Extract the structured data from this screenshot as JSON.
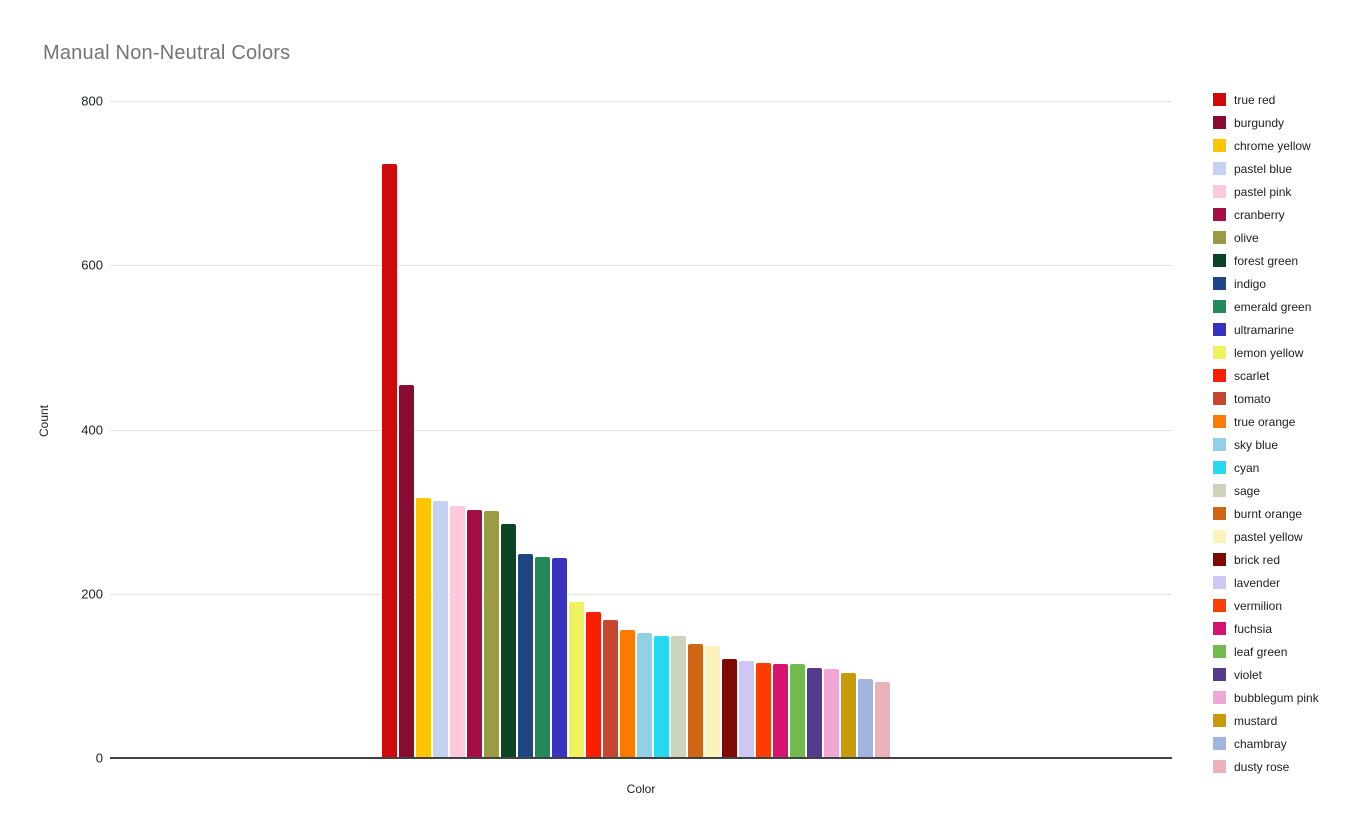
{
  "title": "Manual Non-Neutral Colors",
  "chart_data": {
    "type": "bar",
    "title": "Manual Non-Neutral Colors",
    "xlabel": "Color",
    "ylabel": "Count",
    "ylim": [
      0,
      800
    ],
    "yticks": [
      0,
      200,
      400,
      600,
      800
    ],
    "grid": true,
    "legend_position": "right",
    "categories": [
      "true red",
      "burgundy",
      "chrome yellow",
      "pastel blue",
      "pastel pink",
      "cranberry",
      "olive",
      "forest green",
      "indigo",
      "emerald green",
      "ultramarine",
      "lemon yellow",
      "scarlet",
      "tomato",
      "true orange",
      "sky blue",
      "cyan",
      "sage",
      "burnt orange",
      "pastel yellow",
      "brick red",
      "lavender",
      "vermilion",
      "fuchsia",
      "leaf green",
      "violet",
      "bubblegum pink",
      "mustard",
      "chambray",
      "dusty rose"
    ],
    "values": [
      723,
      454,
      317,
      313,
      307,
      302,
      301,
      285,
      249,
      245,
      243,
      190,
      178,
      168,
      156,
      152,
      149,
      148,
      139,
      137,
      120,
      118,
      116,
      115,
      114,
      110,
      108,
      104,
      96,
      93
    ],
    "colors": [
      "#ce0a0a",
      "#8b0a32",
      "#fdc500",
      "#c3d2f0",
      "#fec9dc",
      "#a60d45",
      "#9c9b45",
      "#0b4326",
      "#1e4685",
      "#22895b",
      "#3733c0",
      "#eef25d",
      "#fc1e00",
      "#c74630",
      "#fd7900",
      "#90d1e8",
      "#27d9f0",
      "#cbd3bb",
      "#d16516",
      "#fcf3ba",
      "#7f0a05",
      "#cdc7f5",
      "#fc3d00",
      "#d91272",
      "#70ba4e",
      "#563a8b",
      "#f2a6d3",
      "#c89a06",
      "#a0b4de",
      "#ebb2bb"
    ],
    "axis_color": "#424242",
    "gridline_color": "#e3e3e3",
    "title_color": "#757575"
  }
}
